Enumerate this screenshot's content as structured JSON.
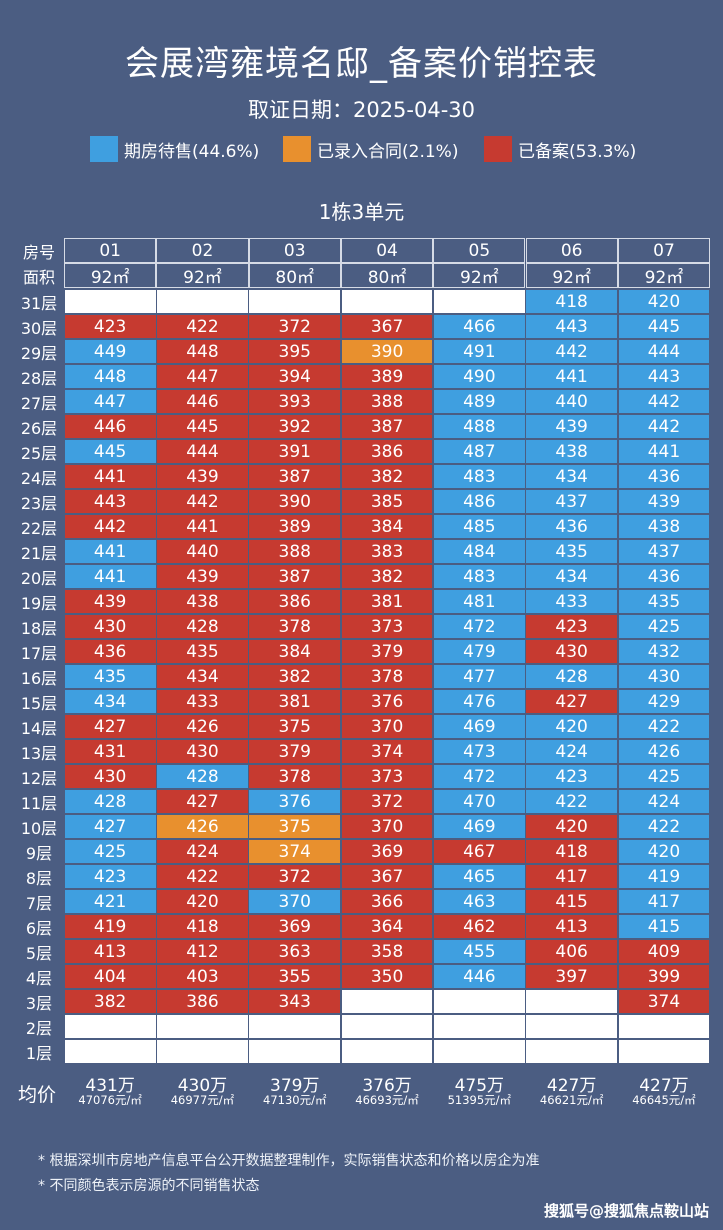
{
  "header": {
    "title": "会展湾雍境名邸_备案价销控表",
    "subtitle": "取证日期：2025-04-30",
    "unit_title": "1栋3单元"
  },
  "legend": [
    {
      "label": "期房待售(44.6%)",
      "color": "#3f9fe0"
    },
    {
      "label": "已录入合同(2.1%)",
      "color": "#e8902e"
    },
    {
      "label": "已备案(53.3%)",
      "color": "#c63a30"
    }
  ],
  "status_colors": {
    "B": "#3f9fe0",
    "O": "#e8902e",
    "R": "#c63a30",
    "W": "#ffffff"
  },
  "chart_data": {
    "type": "table",
    "header_labels": {
      "room": "房号",
      "area": "面积"
    },
    "rooms": [
      "01",
      "02",
      "03",
      "04",
      "05",
      "06",
      "07"
    ],
    "areas": [
      "92㎡",
      "92㎡",
      "80㎡",
      "80㎡",
      "92㎡",
      "92㎡",
      "92㎡"
    ],
    "floors": [
      {
        "label": "31层",
        "cells": [
          [
            "",
            "W"
          ],
          [
            "",
            "W"
          ],
          [
            "",
            "W"
          ],
          [
            "",
            "W"
          ],
          [
            "",
            "W"
          ],
          [
            "418",
            "B"
          ],
          [
            "420",
            "B"
          ]
        ]
      },
      {
        "label": "30层",
        "cells": [
          [
            "423",
            "R"
          ],
          [
            "422",
            "R"
          ],
          [
            "372",
            "R"
          ],
          [
            "367",
            "R"
          ],
          [
            "466",
            "B"
          ],
          [
            "443",
            "B"
          ],
          [
            "445",
            "B"
          ]
        ]
      },
      {
        "label": "29层",
        "cells": [
          [
            "449",
            "B"
          ],
          [
            "448",
            "R"
          ],
          [
            "395",
            "R"
          ],
          [
            "390",
            "O"
          ],
          [
            "491",
            "B"
          ],
          [
            "442",
            "B"
          ],
          [
            "444",
            "B"
          ]
        ]
      },
      {
        "label": "28层",
        "cells": [
          [
            "448",
            "B"
          ],
          [
            "447",
            "R"
          ],
          [
            "394",
            "R"
          ],
          [
            "389",
            "R"
          ],
          [
            "490",
            "B"
          ],
          [
            "441",
            "B"
          ],
          [
            "443",
            "B"
          ]
        ]
      },
      {
        "label": "27层",
        "cells": [
          [
            "447",
            "B"
          ],
          [
            "446",
            "R"
          ],
          [
            "393",
            "R"
          ],
          [
            "388",
            "R"
          ],
          [
            "489",
            "B"
          ],
          [
            "440",
            "B"
          ],
          [
            "442",
            "B"
          ]
        ]
      },
      {
        "label": "26层",
        "cells": [
          [
            "446",
            "R"
          ],
          [
            "445",
            "R"
          ],
          [
            "392",
            "R"
          ],
          [
            "387",
            "R"
          ],
          [
            "488",
            "B"
          ],
          [
            "439",
            "B"
          ],
          [
            "442",
            "B"
          ]
        ]
      },
      {
        "label": "25层",
        "cells": [
          [
            "445",
            "B"
          ],
          [
            "444",
            "R"
          ],
          [
            "391",
            "R"
          ],
          [
            "386",
            "R"
          ],
          [
            "487",
            "B"
          ],
          [
            "438",
            "B"
          ],
          [
            "441",
            "B"
          ]
        ]
      },
      {
        "label": "24层",
        "cells": [
          [
            "441",
            "R"
          ],
          [
            "439",
            "R"
          ],
          [
            "387",
            "R"
          ],
          [
            "382",
            "R"
          ],
          [
            "483",
            "B"
          ],
          [
            "434",
            "B"
          ],
          [
            "436",
            "B"
          ]
        ]
      },
      {
        "label": "23层",
        "cells": [
          [
            "443",
            "R"
          ],
          [
            "442",
            "R"
          ],
          [
            "390",
            "R"
          ],
          [
            "385",
            "R"
          ],
          [
            "486",
            "B"
          ],
          [
            "437",
            "B"
          ],
          [
            "439",
            "B"
          ]
        ]
      },
      {
        "label": "22层",
        "cells": [
          [
            "442",
            "R"
          ],
          [
            "441",
            "R"
          ],
          [
            "389",
            "R"
          ],
          [
            "384",
            "R"
          ],
          [
            "485",
            "B"
          ],
          [
            "436",
            "B"
          ],
          [
            "438",
            "B"
          ]
        ]
      },
      {
        "label": "21层",
        "cells": [
          [
            "441",
            "B"
          ],
          [
            "440",
            "R"
          ],
          [
            "388",
            "R"
          ],
          [
            "383",
            "R"
          ],
          [
            "484",
            "B"
          ],
          [
            "435",
            "B"
          ],
          [
            "437",
            "B"
          ]
        ]
      },
      {
        "label": "20层",
        "cells": [
          [
            "441",
            "B"
          ],
          [
            "439",
            "R"
          ],
          [
            "387",
            "R"
          ],
          [
            "382",
            "R"
          ],
          [
            "483",
            "B"
          ],
          [
            "434",
            "B"
          ],
          [
            "436",
            "B"
          ]
        ]
      },
      {
        "label": "19层",
        "cells": [
          [
            "439",
            "R"
          ],
          [
            "438",
            "R"
          ],
          [
            "386",
            "R"
          ],
          [
            "381",
            "R"
          ],
          [
            "481",
            "B"
          ],
          [
            "433",
            "B"
          ],
          [
            "435",
            "B"
          ]
        ]
      },
      {
        "label": "18层",
        "cells": [
          [
            "430",
            "R"
          ],
          [
            "428",
            "R"
          ],
          [
            "378",
            "R"
          ],
          [
            "373",
            "R"
          ],
          [
            "472",
            "B"
          ],
          [
            "423",
            "R"
          ],
          [
            "425",
            "B"
          ]
        ]
      },
      {
        "label": "17层",
        "cells": [
          [
            "436",
            "R"
          ],
          [
            "435",
            "R"
          ],
          [
            "384",
            "R"
          ],
          [
            "379",
            "R"
          ],
          [
            "479",
            "B"
          ],
          [
            "430",
            "R"
          ],
          [
            "432",
            "B"
          ]
        ]
      },
      {
        "label": "16层",
        "cells": [
          [
            "435",
            "B"
          ],
          [
            "434",
            "R"
          ],
          [
            "382",
            "R"
          ],
          [
            "378",
            "R"
          ],
          [
            "477",
            "B"
          ],
          [
            "428",
            "B"
          ],
          [
            "430",
            "B"
          ]
        ]
      },
      {
        "label": "15层",
        "cells": [
          [
            "434",
            "B"
          ],
          [
            "433",
            "R"
          ],
          [
            "381",
            "R"
          ],
          [
            "376",
            "R"
          ],
          [
            "476",
            "B"
          ],
          [
            "427",
            "R"
          ],
          [
            "429",
            "B"
          ]
        ]
      },
      {
        "label": "14层",
        "cells": [
          [
            "427",
            "R"
          ],
          [
            "426",
            "R"
          ],
          [
            "375",
            "R"
          ],
          [
            "370",
            "R"
          ],
          [
            "469",
            "B"
          ],
          [
            "420",
            "B"
          ],
          [
            "422",
            "B"
          ]
        ]
      },
      {
        "label": "13层",
        "cells": [
          [
            "431",
            "R"
          ],
          [
            "430",
            "R"
          ],
          [
            "379",
            "R"
          ],
          [
            "374",
            "R"
          ],
          [
            "473",
            "B"
          ],
          [
            "424",
            "B"
          ],
          [
            "426",
            "B"
          ]
        ]
      },
      {
        "label": "12层",
        "cells": [
          [
            "430",
            "R"
          ],
          [
            "428",
            "B"
          ],
          [
            "378",
            "R"
          ],
          [
            "373",
            "R"
          ],
          [
            "472",
            "B"
          ],
          [
            "423",
            "B"
          ],
          [
            "425",
            "B"
          ]
        ]
      },
      {
        "label": "11层",
        "cells": [
          [
            "428",
            "B"
          ],
          [
            "427",
            "R"
          ],
          [
            "376",
            "B"
          ],
          [
            "372",
            "R"
          ],
          [
            "470",
            "B"
          ],
          [
            "422",
            "B"
          ],
          [
            "424",
            "B"
          ]
        ]
      },
      {
        "label": "10层",
        "cells": [
          [
            "427",
            "B"
          ],
          [
            "426",
            "O"
          ],
          [
            "375",
            "O"
          ],
          [
            "370",
            "R"
          ],
          [
            "469",
            "B"
          ],
          [
            "420",
            "R"
          ],
          [
            "422",
            "B"
          ]
        ]
      },
      {
        "label": "9层",
        "cells": [
          [
            "425",
            "B"
          ],
          [
            "424",
            "R"
          ],
          [
            "374",
            "O"
          ],
          [
            "369",
            "R"
          ],
          [
            "467",
            "R"
          ],
          [
            "418",
            "R"
          ],
          [
            "420",
            "B"
          ]
        ]
      },
      {
        "label": "8层",
        "cells": [
          [
            "423",
            "B"
          ],
          [
            "422",
            "R"
          ],
          [
            "372",
            "R"
          ],
          [
            "367",
            "R"
          ],
          [
            "465",
            "B"
          ],
          [
            "417",
            "R"
          ],
          [
            "419",
            "B"
          ]
        ]
      },
      {
        "label": "7层",
        "cells": [
          [
            "421",
            "B"
          ],
          [
            "420",
            "R"
          ],
          [
            "370",
            "B"
          ],
          [
            "366",
            "R"
          ],
          [
            "463",
            "B"
          ],
          [
            "415",
            "R"
          ],
          [
            "417",
            "B"
          ]
        ]
      },
      {
        "label": "6层",
        "cells": [
          [
            "419",
            "R"
          ],
          [
            "418",
            "R"
          ],
          [
            "369",
            "R"
          ],
          [
            "364",
            "R"
          ],
          [
            "462",
            "R"
          ],
          [
            "413",
            "R"
          ],
          [
            "415",
            "B"
          ]
        ]
      },
      {
        "label": "5层",
        "cells": [
          [
            "413",
            "R"
          ],
          [
            "412",
            "R"
          ],
          [
            "363",
            "R"
          ],
          [
            "358",
            "R"
          ],
          [
            "455",
            "B"
          ],
          [
            "406",
            "R"
          ],
          [
            "409",
            "R"
          ]
        ]
      },
      {
        "label": "4层",
        "cells": [
          [
            "404",
            "R"
          ],
          [
            "403",
            "R"
          ],
          [
            "355",
            "R"
          ],
          [
            "350",
            "R"
          ],
          [
            "446",
            "B"
          ],
          [
            "397",
            "R"
          ],
          [
            "399",
            "R"
          ]
        ]
      },
      {
        "label": "3层",
        "cells": [
          [
            "382",
            "R"
          ],
          [
            "386",
            "R"
          ],
          [
            "343",
            "R"
          ],
          [
            "",
            "W"
          ],
          [
            "",
            "W"
          ],
          [
            "",
            "W"
          ],
          [
            "374",
            "R"
          ]
        ]
      },
      {
        "label": "2层",
        "cells": [
          [
            "",
            "W"
          ],
          [
            "",
            "W"
          ],
          [
            "",
            "W"
          ],
          [
            "",
            "W"
          ],
          [
            "",
            "W"
          ],
          [
            "",
            "W"
          ],
          [
            "",
            "W"
          ]
        ]
      },
      {
        "label": "1层",
        "cells": [
          [
            "",
            "W"
          ],
          [
            "",
            "W"
          ],
          [
            "",
            "W"
          ],
          [
            "",
            "W"
          ],
          [
            "",
            "W"
          ],
          [
            "",
            "W"
          ],
          [
            "",
            "W"
          ]
        ]
      }
    ],
    "avg_label": "均价",
    "averages": [
      {
        "total": "431万",
        "per_sqm": "47076元/㎡"
      },
      {
        "total": "430万",
        "per_sqm": "46977元/㎡"
      },
      {
        "total": "379万",
        "per_sqm": "47130元/㎡"
      },
      {
        "total": "376万",
        "per_sqm": "46693元/㎡"
      },
      {
        "total": "475万",
        "per_sqm": "51395元/㎡"
      },
      {
        "total": "427万",
        "per_sqm": "46621元/㎡"
      },
      {
        "total": "427万",
        "per_sqm": "46645元/㎡"
      }
    ]
  },
  "notes": [
    "* 根据深圳市房地产信息平台公开数据整理制作，实际销售状态和价格以房企为准",
    "* 不同颜色表示房源的不同销售状态"
  ],
  "watermark": "搜狐号@搜狐焦点鞍山站"
}
